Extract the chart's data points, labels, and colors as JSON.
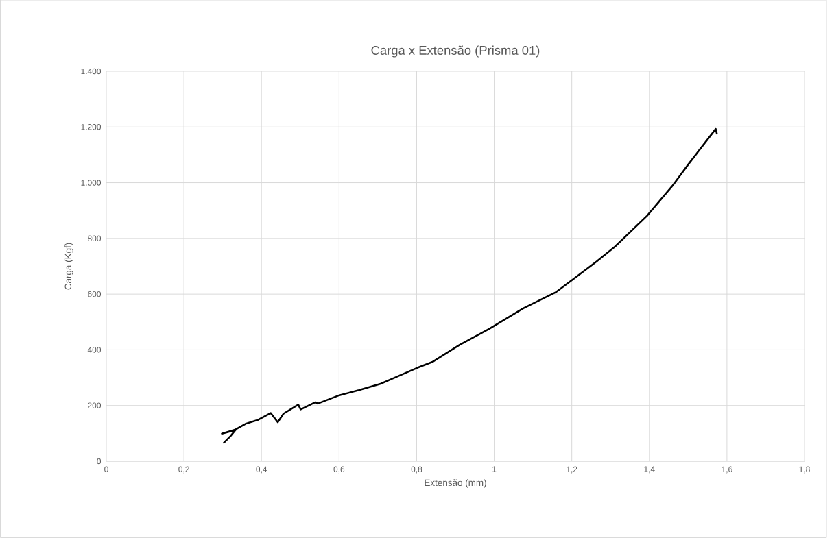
{
  "chart_data": {
    "type": "line",
    "title": "Carga x Extensão (Prisma 01)",
    "xlabel": "Extensão (mm)",
    "ylabel": "Carga (Kgf)",
    "xlim": [
      0,
      1.8
    ],
    "ylim": [
      0,
      1400
    ],
    "xticks": [
      0,
      {
        "value": 0.2,
        "label": "0,2"
      },
      {
        "value": 0.4,
        "label": "0,4"
      },
      {
        "value": 0.6,
        "label": "0,6"
      },
      {
        "value": 0.8,
        "label": "0,8"
      },
      1,
      {
        "value": 1.2,
        "label": "1,2"
      },
      {
        "value": 1.4,
        "label": "1,4"
      },
      {
        "value": 1.6,
        "label": "1,6"
      },
      {
        "value": 1.8,
        "label": "1,8"
      }
    ],
    "yticks": [
      0,
      200,
      400,
      600,
      800,
      {
        "value": 1000,
        "label": "1.000"
      },
      {
        "value": 1200,
        "label": "1.200"
      },
      {
        "value": 1400,
        "label": "1.400"
      }
    ],
    "grid": true,
    "marker": "none",
    "line_style": "solid",
    "series": [
      {
        "color": "#000000",
        "x": [
          0.303,
          0.32,
          0.333,
          0.298,
          0.333,
          0.36,
          0.392,
          0.424,
          0.442,
          0.457,
          0.495,
          0.501,
          0.539,
          0.545,
          0.601,
          0.651,
          0.707,
          0.74,
          0.801,
          0.84,
          0.911,
          0.987,
          1.075,
          1.158,
          1.205,
          1.264,
          1.311,
          1.394,
          1.459,
          1.5,
          1.571,
          1.574
        ],
        "values": [
          66,
          90,
          112,
          99,
          114,
          135,
          149,
          173,
          140,
          171,
          203,
          186,
          212,
          207,
          237,
          255,
          278,
          298,
          335,
          356,
          418,
          475,
          549,
          606,
          655,
          717,
          770,
          881,
          988,
          1065,
          1193,
          1176
        ]
      }
    ]
  }
}
